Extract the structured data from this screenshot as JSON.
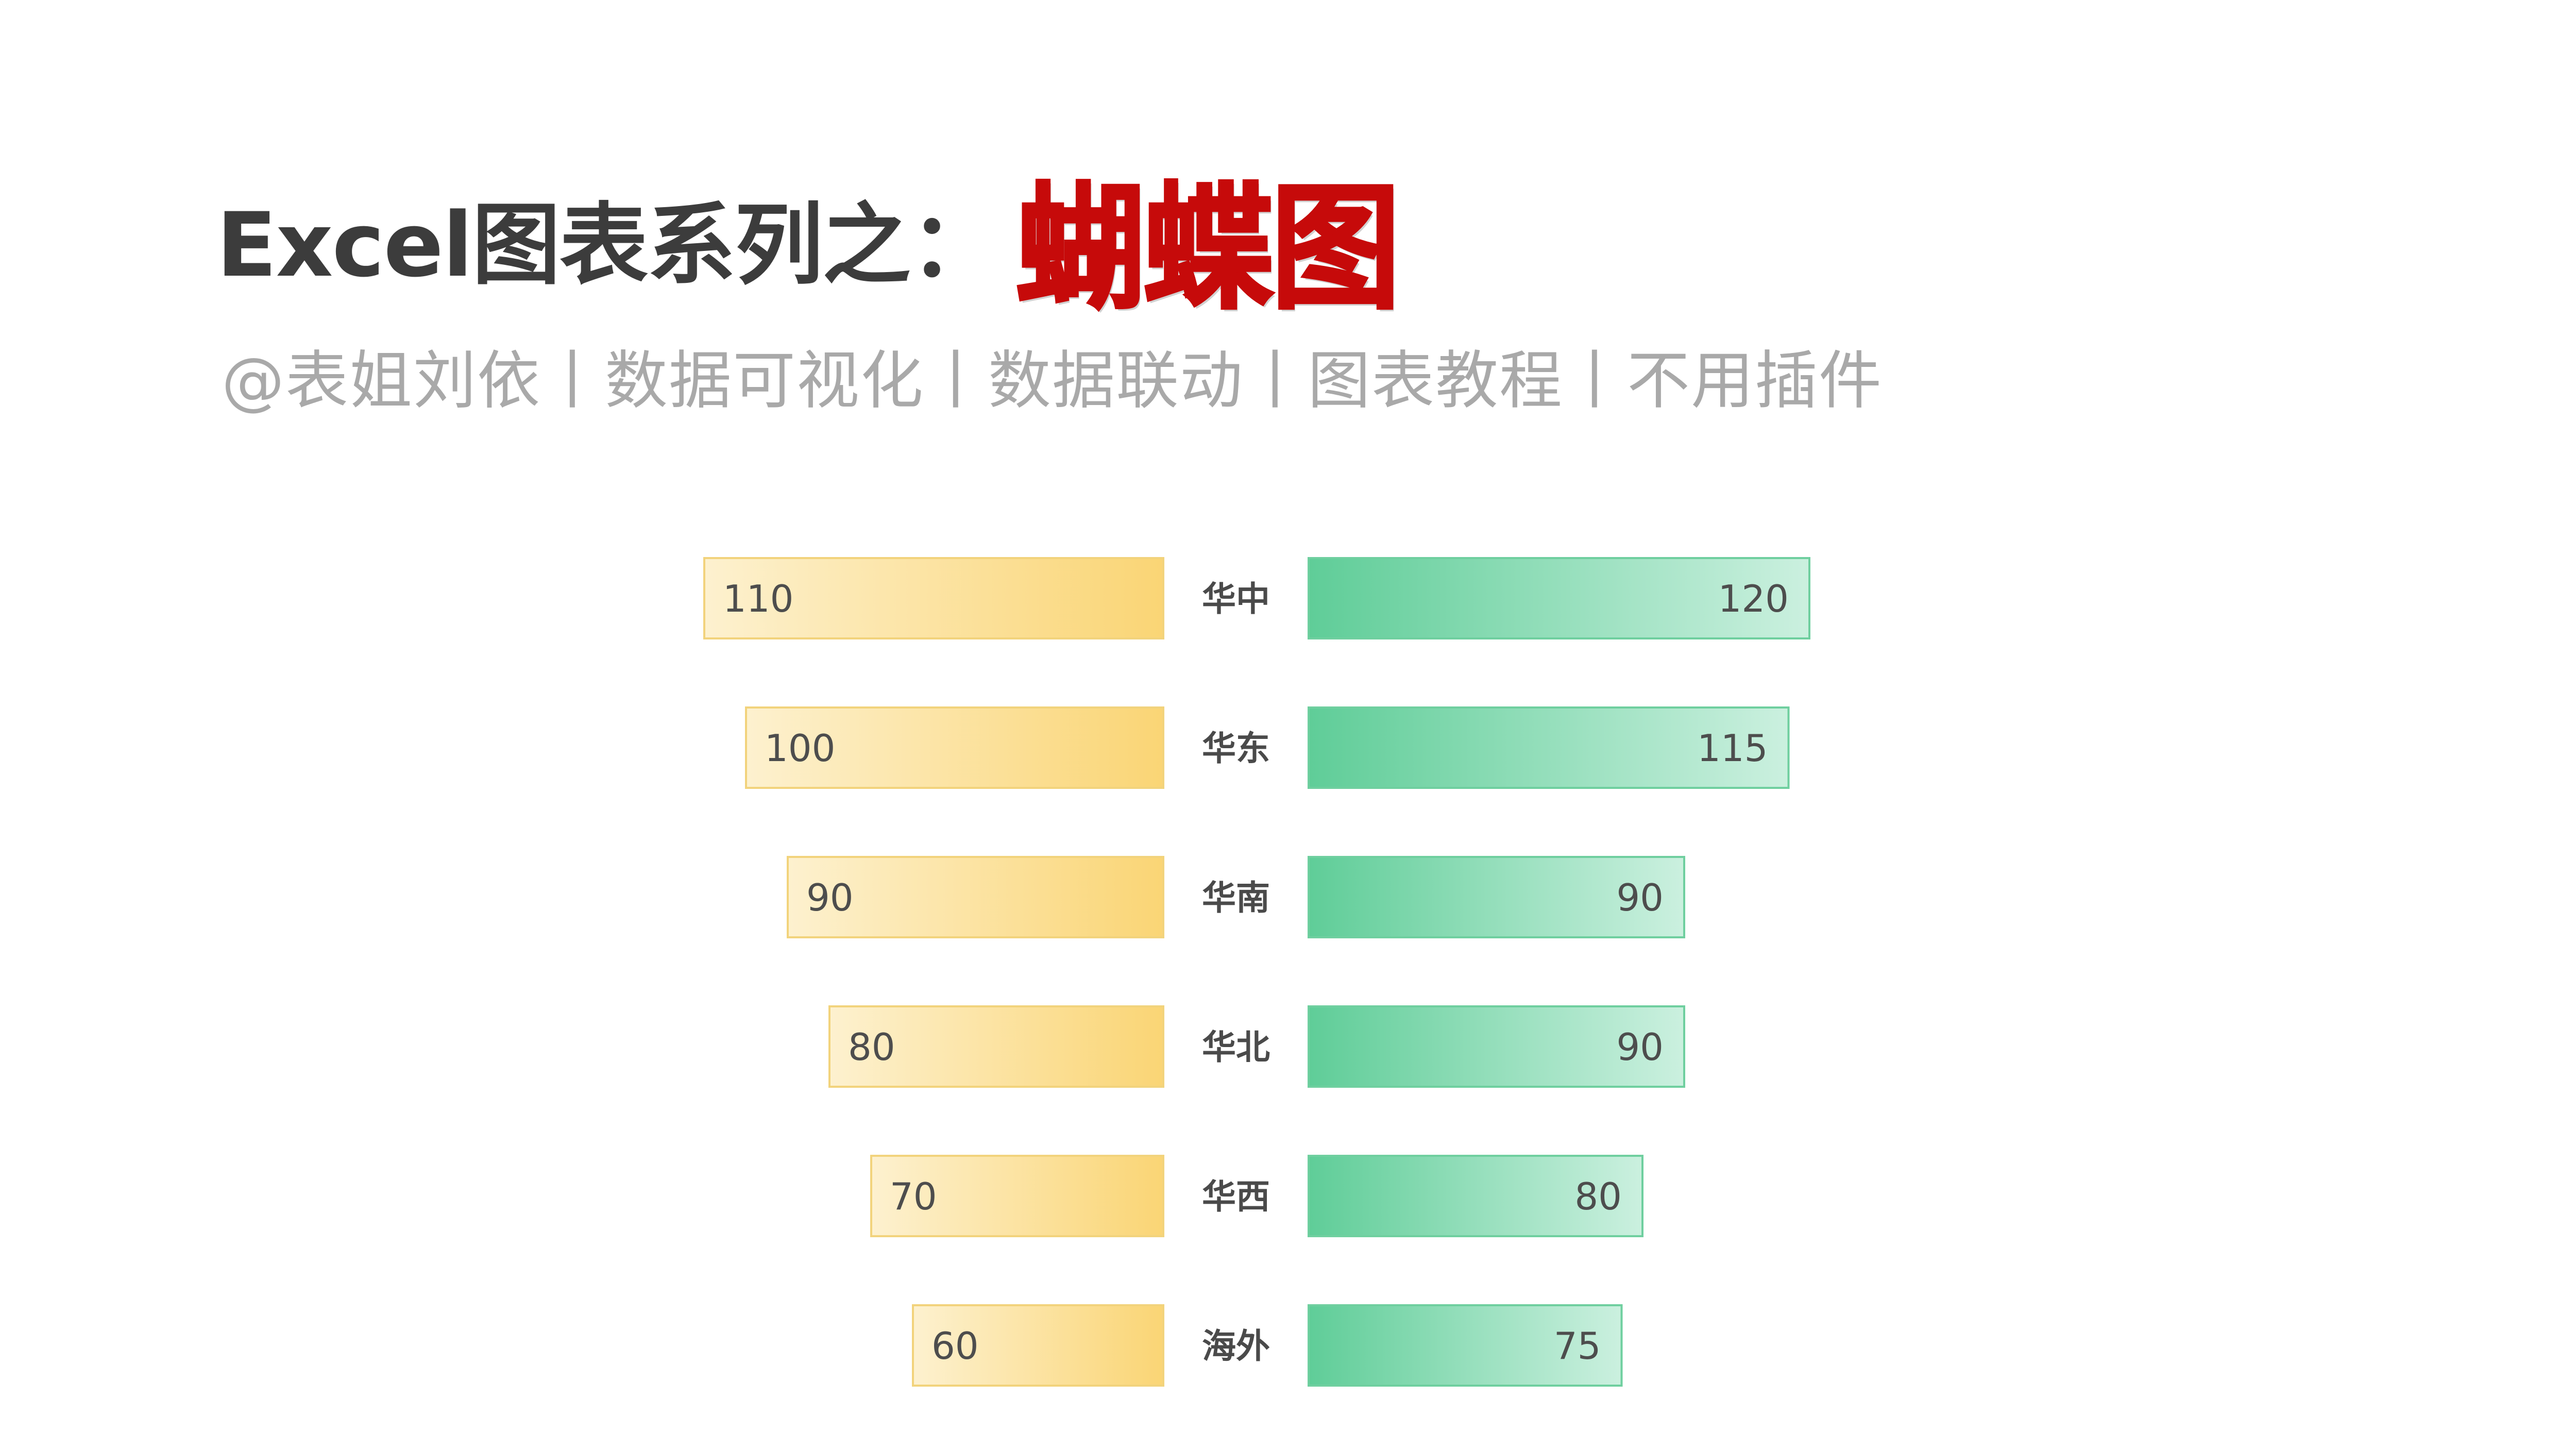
{
  "header": {
    "title_main": "Excel图表系列之：",
    "title_accent": "蝴蝶图",
    "subtitle": "@表姐刘依丨数据可视化丨数据联动丨图表教程丨不用插件"
  },
  "colors": {
    "left_bar_light": "#fdf1cf",
    "left_bar_dark": "#fad575",
    "left_bar_border": "#f2d37c",
    "right_bar_dark": "#5fcd98",
    "right_bar_light": "#cbf0df",
    "right_bar_border": "#6fcf9f"
  },
  "chart_data": {
    "type": "bar",
    "categories": [
      "华中",
      "华东",
      "华南",
      "华北",
      "华西",
      "海外"
    ],
    "series": [
      {
        "values": [
          110,
          100,
          90,
          80,
          70,
          60
        ]
      },
      {
        "values": [
          120,
          115,
          90,
          90,
          80,
          75
        ]
      }
    ],
    "title": "",
    "xlabel": "",
    "ylabel": "",
    "xlim": [
      0,
      120
    ],
    "grid": false
  }
}
